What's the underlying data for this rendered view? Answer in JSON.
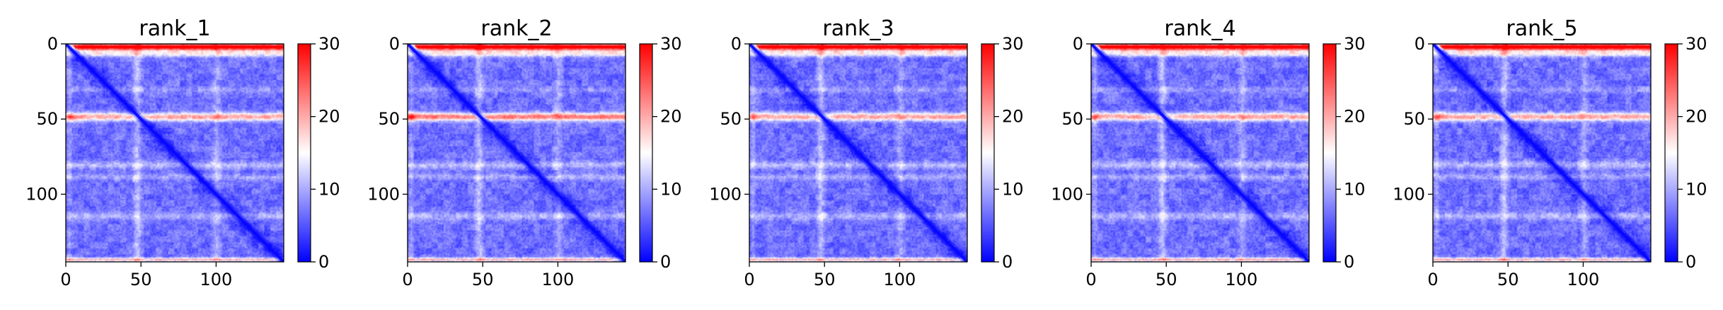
{
  "chart_data": [
    {
      "type": "heatmap",
      "title": "rank_1",
      "xticks": [
        "0",
        "50",
        "100"
      ],
      "yticks": [
        "0",
        "50",
        "100"
      ],
      "xlim": [
        0,
        145
      ],
      "ylim": [
        145,
        0
      ],
      "colorbar": {
        "ticks": [
          "0",
          "10",
          "20",
          "30"
        ],
        "range": [
          0,
          30
        ],
        "colors": [
          "#0000ff",
          "#ffffff",
          "#ff0000"
        ]
      }
    },
    {
      "type": "heatmap",
      "title": "rank_2",
      "xticks": [
        "0",
        "50",
        "100"
      ],
      "yticks": [
        "0",
        "50",
        "100"
      ],
      "xlim": [
        0,
        145
      ],
      "ylim": [
        145,
        0
      ],
      "colorbar": {
        "ticks": [
          "0",
          "10",
          "20",
          "30"
        ],
        "range": [
          0,
          30
        ],
        "colors": [
          "#0000ff",
          "#ffffff",
          "#ff0000"
        ]
      }
    },
    {
      "type": "heatmap",
      "title": "rank_3",
      "xticks": [
        "0",
        "50",
        "100"
      ],
      "yticks": [
        "0",
        "50",
        "100"
      ],
      "xlim": [
        0,
        145
      ],
      "ylim": [
        145,
        0
      ],
      "colorbar": {
        "ticks": [
          "0",
          "10",
          "20",
          "30"
        ],
        "range": [
          0,
          30
        ],
        "colors": [
          "#0000ff",
          "#ffffff",
          "#ff0000"
        ]
      }
    },
    {
      "type": "heatmap",
      "title": "rank_4",
      "xticks": [
        "0",
        "50",
        "100"
      ],
      "yticks": [
        "0",
        "50",
        "100"
      ],
      "xlim": [
        0,
        145
      ],
      "ylim": [
        145,
        0
      ],
      "colorbar": {
        "ticks": [
          "0",
          "10",
          "20",
          "30"
        ],
        "range": [
          0,
          30
        ],
        "colors": [
          "#0000ff",
          "#ffffff",
          "#ff0000"
        ]
      }
    },
    {
      "type": "heatmap",
      "title": "rank_5",
      "xticks": [
        "0",
        "50",
        "100"
      ],
      "yticks": [
        "0",
        "50",
        "100"
      ],
      "xlim": [
        0,
        145
      ],
      "ylim": [
        145,
        0
      ],
      "colorbar": {
        "ticks": [
          "0",
          "10",
          "20",
          "30"
        ],
        "range": [
          0,
          30
        ],
        "colors": [
          "#0000ff",
          "#ffffff",
          "#ff0000"
        ]
      }
    }
  ]
}
